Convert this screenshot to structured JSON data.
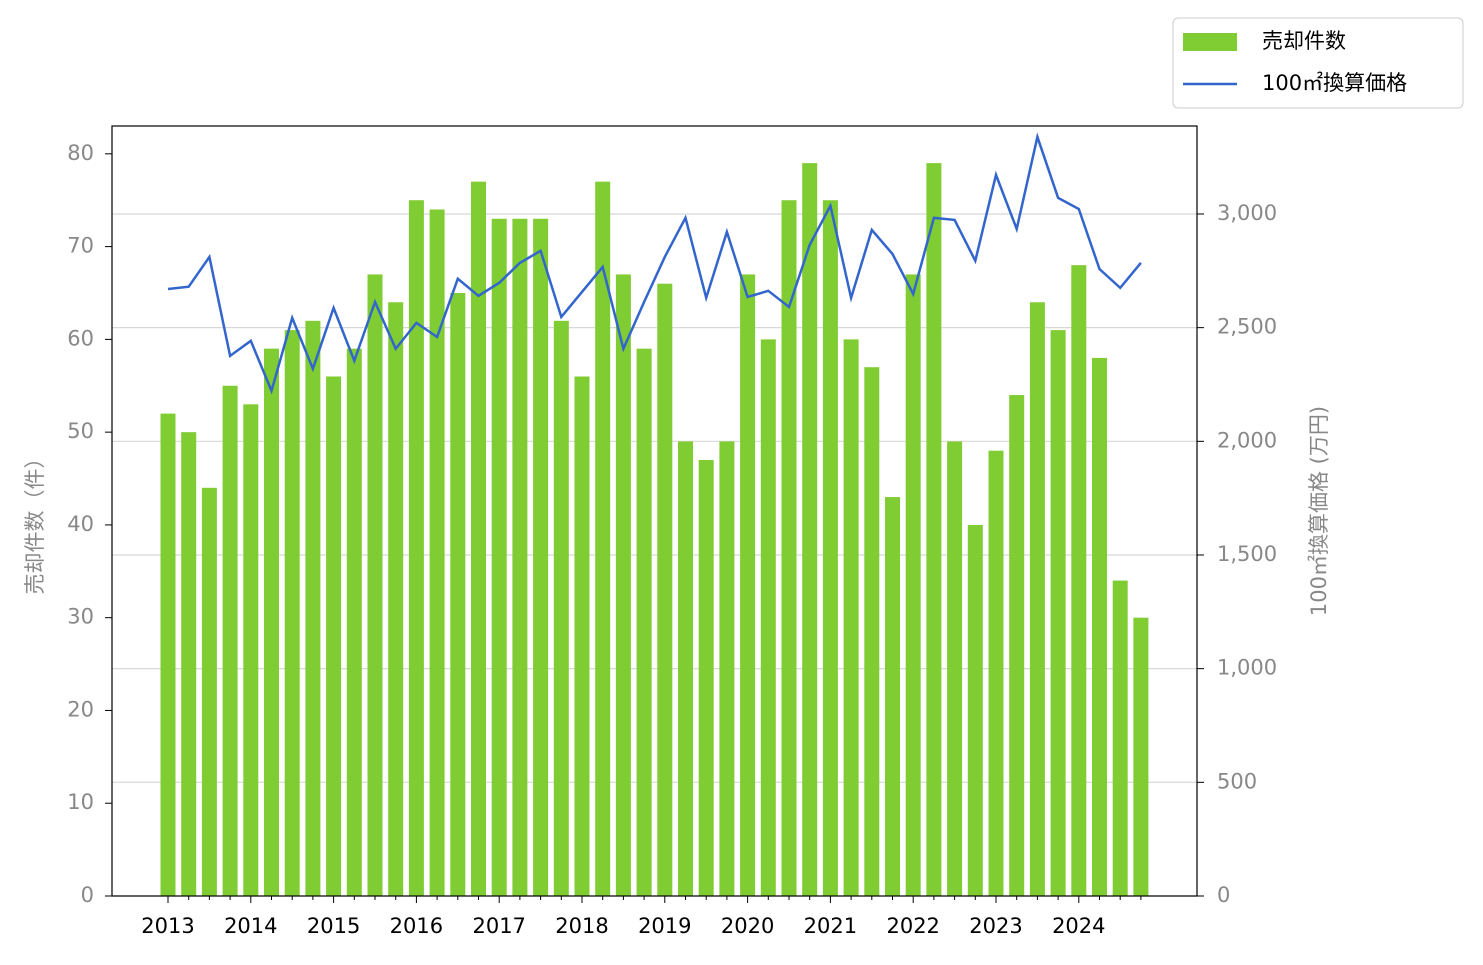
{
  "chart_data": {
    "type": "bar_line",
    "categories": [
      "2013",
      null,
      null,
      null,
      "2014",
      null,
      null,
      null,
      "2015",
      null,
      null,
      null,
      "2016",
      null,
      null,
      null,
      "2017",
      null,
      null,
      null,
      "2018",
      null,
      null,
      null,
      "2019",
      null,
      null,
      null,
      "2020",
      null,
      null,
      null,
      "2021",
      null,
      null,
      null,
      "2022",
      null,
      null,
      null,
      "2023",
      null,
      null,
      null,
      "2024",
      null,
      null,
      null
    ],
    "series": [
      {
        "name": "売却件数",
        "type": "bar",
        "color": "#80cc33",
        "values": [
          52,
          50,
          44,
          55,
          53,
          59,
          61,
          62,
          56,
          59,
          67,
          64,
          75,
          74,
          65,
          77,
          73,
          73,
          73,
          62,
          56,
          77,
          67,
          59,
          66,
          49,
          47,
          49,
          67,
          60,
          75,
          79,
          75,
          60,
          57,
          43,
          67,
          79,
          49,
          40,
          48,
          54,
          64,
          61,
          68,
          58,
          34,
          30
        ]
      },
      {
        "name": "100㎡換算価格",
        "type": "line",
        "axis": "y2",
        "color": "#3366cc",
        "values": [
          2670,
          2680,
          2811,
          2376,
          2442,
          2222,
          2543,
          2319,
          2587,
          2354,
          2613,
          2407,
          2521,
          2459,
          2715,
          2640,
          2697,
          2785,
          2838,
          2547,
          2657,
          2767,
          2407,
          2613,
          2811,
          2983,
          2631,
          2921,
          2635,
          2662,
          2591,
          2864,
          3036,
          2631,
          2930,
          2824,
          2648,
          2983,
          2974,
          2794,
          3172,
          2934,
          3339,
          3071,
          3022,
          2758,
          2675,
          2785
        ]
      }
    ],
    "ylabel": "売却件数（件）",
    "y2label": "100㎡換算価格 (万円)",
    "ylim": [
      0,
      83
    ],
    "yticks": [
      0,
      10,
      20,
      30,
      40,
      50,
      60,
      70,
      80
    ],
    "y2lim": [
      0,
      3387
    ],
    "y2ticks": [
      0,
      500,
      {
        "value": 1000,
        "label": "1,000"
      },
      {
        "value": 1500,
        "label": "1,500"
      },
      {
        "value": 2000,
        "label": "2,000"
      },
      {
        "value": 2500,
        "label": "2,500"
      },
      {
        "value": 3000,
        "label": "3,000"
      }
    ],
    "grid": true,
    "legend": "upper right"
  }
}
